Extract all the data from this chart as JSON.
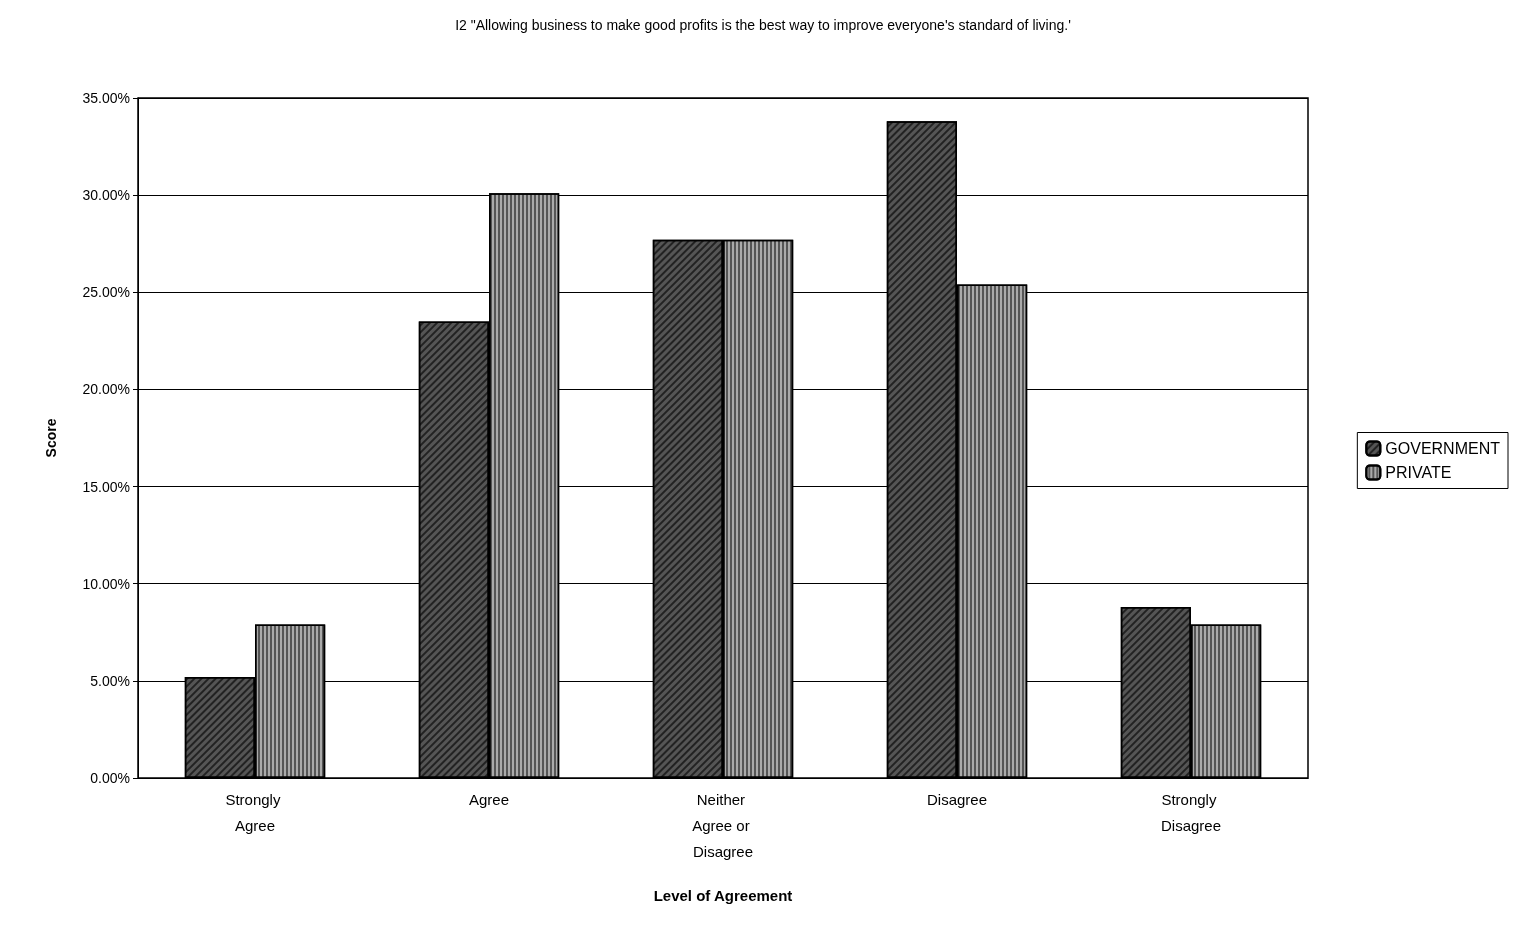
{
  "chart_data": {
    "type": "bar",
    "title": "I2 \"Allowing business to make good profits is the best way to improve everyone's standard of living.'",
    "xlabel": "Level of Agreement",
    "ylabel": "Score",
    "categories": [
      "Strongly Agree",
      "Agree",
      "Neither Agree or Disagree",
      "Disagree",
      "Strongly Disagree"
    ],
    "series": [
      {
        "name": "GOVERNMENT",
        "color": "#555555",
        "values": [
          5.2,
          23.5,
          27.7,
          33.8,
          8.8
        ]
      },
      {
        "name": "PRIVATE",
        "color": "#aaaaaa",
        "values": [
          7.9,
          30.1,
          27.7,
          25.4,
          7.9
        ]
      }
    ],
    "ylim": [
      0,
      35
    ],
    "yticks": [
      {
        "value": 0,
        "label": "0.00%"
      },
      {
        "value": 5,
        "label": "5.00%"
      },
      {
        "value": 10,
        "label": "10.00%"
      },
      {
        "value": 15,
        "label": "15.00%"
      },
      {
        "value": 20,
        "label": "20.00%"
      },
      {
        "value": 25,
        "label": "25.00%"
      },
      {
        "value": 30,
        "label": "30.00%"
      },
      {
        "value": 35,
        "label": "35.00%"
      }
    ],
    "grid": true,
    "legend": "right"
  }
}
